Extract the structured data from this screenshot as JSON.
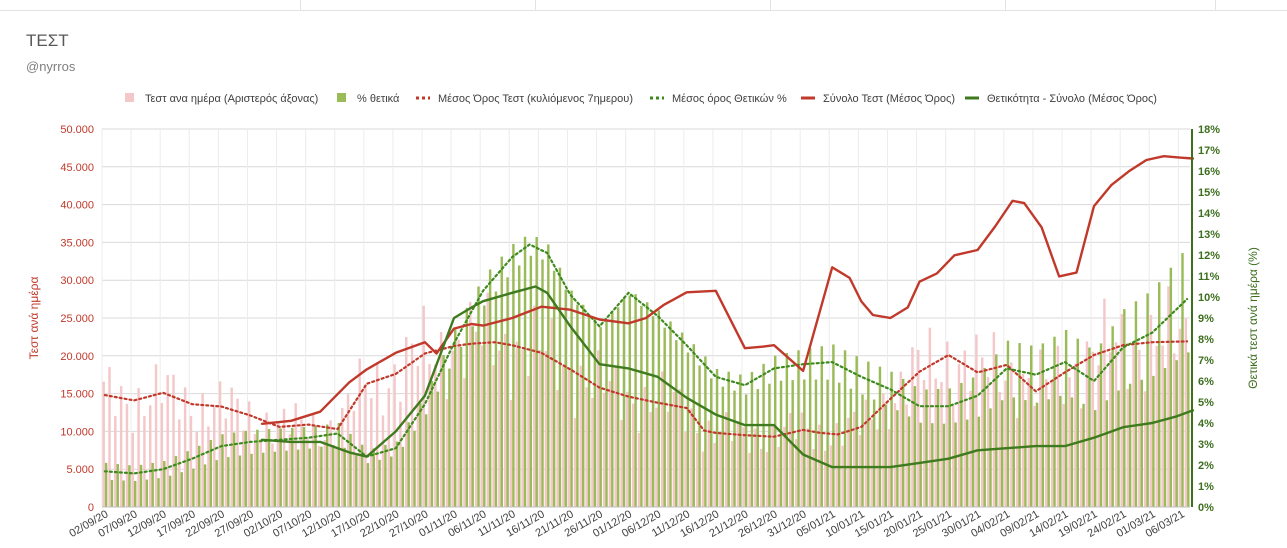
{
  "title": "ΤΕΣΤ",
  "subtitle": "@nyrros",
  "chart_data": {
    "type": "bar",
    "left_axis": {
      "title": "Τεστ ανά ημέρα",
      "range": [
        0,
        50000
      ],
      "ticks": [
        "0",
        "5.000",
        "10.000",
        "15.000",
        "20.000",
        "25.000",
        "30.000",
        "35.000",
        "40.000",
        "45.000",
        "50.000"
      ]
    },
    "right_axis": {
      "title": "Θετικά τεστ ανά ημέρα (%)",
      "range": [
        0,
        18
      ],
      "ticks": [
        "0%",
        "1%",
        "2%",
        "3%",
        "4%",
        "5%",
        "6%",
        "7%",
        "8%",
        "9%",
        "10%",
        "11%",
        "12%",
        "13%",
        "14%",
        "15%",
        "16%",
        "17%",
        "18%"
      ]
    },
    "x_tick_labels": [
      "02/09/20",
      "07/09/20",
      "12/09/20",
      "17/09/20",
      "22/09/20",
      "27/09/20",
      "02/10/20",
      "07/10/20",
      "12/10/20",
      "17/10/20",
      "22/10/20",
      "27/10/20",
      "01/11/20",
      "06/11/20",
      "11/11/20",
      "16/11/20",
      "21/11/20",
      "26/11/20",
      "01/12/20",
      "06/12/20",
      "11/12/20",
      "16/12/20",
      "21/12/20",
      "26/12/20",
      "31/12/20",
      "05/01/21",
      "10/01/21",
      "15/01/21",
      "20/01/21",
      "25/01/21",
      "30/01/21",
      "04/02/21",
      "09/02/21",
      "14/02/21",
      "19/02/21",
      "24/02/21",
      "01/03/21",
      "06/03/21"
    ],
    "day_count": 187,
    "grid": true,
    "legend_position": "top",
    "legend": [
      {
        "label": "Τεστ ανα ημέρα (Αριστερός άξονας)",
        "kind": "bar",
        "color": "#f4c7c9"
      },
      {
        "label": "% θετικά",
        "kind": "bar",
        "color": "#9bbb59"
      },
      {
        "label": "Μέσος Όρος Τεστ (κυλιόμενος 7ημερου)",
        "kind": "dotted",
        "color": "#c0392b"
      },
      {
        "label": "Μέσος όρος Θετικών %",
        "kind": "dotted",
        "color": "#3e8a1e"
      },
      {
        "label": "Σύνολο Τεστ (Μέσος Όρος)",
        "kind": "line",
        "color": "#c0392b"
      },
      {
        "label": "Θετικότητα - Σύνολο (Μέσος Όρος)",
        "kind": "line",
        "color": "#3e7a1e"
      }
    ],
    "series": [
      {
        "name": "Μέσος Όρος Τεστ (κυλιόμενος 7ημερου)",
        "axis": "left",
        "day": [
          0,
          5,
          10,
          15,
          20,
          25,
          30,
          35,
          40,
          45,
          50,
          55,
          60,
          63,
          67,
          70,
          75,
          80,
          85,
          90,
          95,
          100,
          103,
          105,
          110,
          115,
          120,
          123,
          126,
          130,
          135,
          140,
          145,
          150,
          155,
          160,
          165,
          170,
          175,
          180,
          186
        ],
        "values": [
          14800,
          14100,
          15100,
          13600,
          13300,
          12100,
          10600,
          10900,
          10300,
          16300,
          17600,
          20300,
          21300,
          21600,
          21800,
          21400,
          20400,
          18200,
          15800,
          14600,
          13800,
          13100,
          10100,
          9800,
          9500,
          9300,
          10200,
          9800,
          9600,
          10600,
          14300,
          17900,
          20100,
          17800,
          18800,
          15300,
          17800,
          20100,
          21400,
          21800,
          21900
        ]
      },
      {
        "name": "Μέσος όρος Θετικών %",
        "axis": "right",
        "day": [
          0,
          5,
          10,
          15,
          20,
          25,
          30,
          35,
          40,
          45,
          50,
          55,
          60,
          65,
          70,
          73,
          76,
          80,
          85,
          90,
          95,
          100,
          105,
          110,
          115,
          120,
          125,
          130,
          135,
          140,
          145,
          150,
          155,
          160,
          165,
          170,
          175,
          180,
          186
        ],
        "values": [
          1.7,
          1.6,
          1.8,
          2.3,
          2.9,
          3.1,
          3.2,
          3.3,
          3.5,
          2.4,
          2.8,
          4.9,
          7.8,
          10.3,
          11.9,
          12.5,
          12.1,
          10.1,
          8.6,
          10.2,
          9.1,
          7.7,
          6.2,
          5.8,
          6.6,
          6.8,
          6.9,
          6.2,
          5.6,
          4.8,
          4.8,
          5.3,
          6.6,
          6.3,
          6.9,
          6.0,
          7.6,
          8.3,
          9.9
        ]
      },
      {
        "name": "Σύνολο Τεστ (Μέσος Όρος)",
        "axis": "left",
        "day": [
          27,
          32,
          37,
          42,
          45,
          50,
          55,
          57,
          60,
          63,
          65,
          70,
          75,
          80,
          85,
          90,
          93,
          96,
          100,
          105,
          110,
          113,
          115,
          120,
          125,
          128,
          130,
          132,
          135,
          138,
          140,
          143,
          146,
          150,
          153,
          156,
          158,
          161,
          164,
          167,
          170,
          173,
          176,
          179,
          182,
          185,
          187
        ],
        "values": [
          11000,
          11400,
          12600,
          16500,
          18200,
          20400,
          21800,
          20300,
          23600,
          24200,
          24000,
          25000,
          26500,
          26100,
          24800,
          24300,
          25000,
          26700,
          28400,
          28600,
          21000,
          21200,
          21400,
          18000,
          31700,
          30300,
          27200,
          25400,
          25000,
          26400,
          29800,
          30900,
          33300,
          34000,
          37100,
          40500,
          40200,
          37000,
          30500,
          31000,
          39800,
          42600,
          44400,
          45900,
          46400,
          46200,
          46100
        ]
      },
      {
        "name": "Θετικότητα - Σύνολο (Μέσος Όρος)",
        "axis": "right",
        "day": [
          27,
          32,
          37,
          42,
          45,
          50,
          55,
          60,
          63,
          65,
          70,
          74,
          76,
          80,
          85,
          90,
          95,
          100,
          105,
          110,
          113,
          115,
          120,
          125,
          130,
          135,
          140,
          145,
          150,
          155,
          160,
          165,
          170,
          175,
          180,
          184,
          187
        ],
        "values": [
          3.2,
          3.1,
          3.1,
          2.6,
          2.4,
          3.6,
          5.3,
          9.0,
          9.5,
          9.8,
          10.2,
          10.5,
          10.2,
          8.6,
          6.8,
          6.6,
          6.2,
          5.2,
          4.4,
          3.9,
          3.9,
          3.9,
          2.5,
          1.9,
          1.9,
          1.9,
          2.1,
          2.3,
          2.7,
          2.8,
          2.9,
          2.9,
          3.3,
          3.8,
          4.0,
          4.3,
          4.6
        ]
      }
    ]
  }
}
